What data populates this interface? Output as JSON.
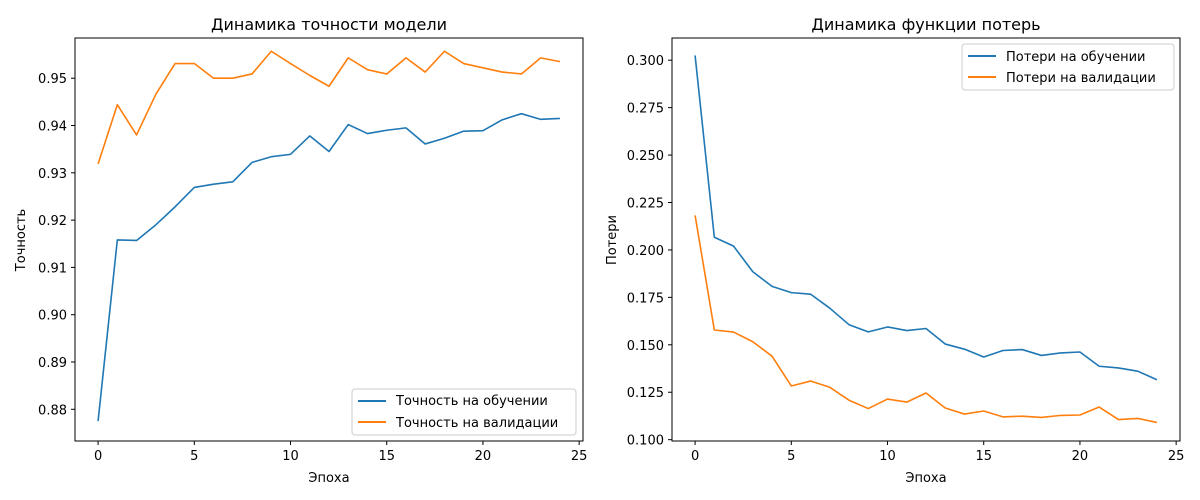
{
  "chart_data": [
    {
      "type": "line",
      "title": "Динамика точности модели",
      "xlabel": "Эпоха",
      "ylabel": "Точность",
      "xlim": [
        -1.2,
        25.2
      ],
      "ylim": [
        0.8733,
        0.9585
      ],
      "xticks": [
        0,
        5,
        10,
        15,
        20,
        25
      ],
      "yticks": [
        0.88,
        0.89,
        0.9,
        0.91,
        0.92,
        0.93,
        0.94,
        0.95
      ],
      "ytick_labels": [
        "0.88",
        "0.89",
        "0.90",
        "0.91",
        "0.92",
        "0.93",
        "0.94",
        "0.95"
      ],
      "grid": false,
      "legend_position": "lower-right",
      "x": [
        0,
        1,
        2,
        3,
        4,
        5,
        6,
        7,
        8,
        9,
        10,
        11,
        12,
        13,
        14,
        15,
        16,
        17,
        18,
        19,
        20,
        21,
        22,
        23,
        24
      ],
      "series": [
        {
          "name": "Точность на обучении",
          "color": "#1f77b4",
          "values": [
            0.8775,
            0.9158,
            0.9157,
            0.919,
            0.9228,
            0.9269,
            0.9276,
            0.9281,
            0.9322,
            0.9334,
            0.9339,
            0.9378,
            0.9345,
            0.9402,
            0.9383,
            0.939,
            0.9395,
            0.9361,
            0.9373,
            0.9388,
            0.9389,
            0.9412,
            0.9425,
            0.9413,
            0.9415
          ]
        },
        {
          "name": "Точность на валидации",
          "color": "#ff7f0e",
          "values": [
            0.9319,
            0.9444,
            0.938,
            0.9466,
            0.9531,
            0.9531,
            0.95,
            0.95,
            0.9509,
            0.9557,
            0.9531,
            0.9506,
            0.9483,
            0.9543,
            0.9518,
            0.9509,
            0.9543,
            0.9513,
            0.9557,
            0.9531,
            0.9522,
            0.9513,
            0.9509,
            0.9543,
            0.9535
          ]
        }
      ]
    },
    {
      "type": "line",
      "title": "Динамика функции потерь",
      "xlabel": "Эпоха",
      "ylabel": "Потери",
      "xlim": [
        -1.2,
        25.2
      ],
      "ylim": [
        0.0993,
        0.3117
      ],
      "xticks": [
        0,
        5,
        10,
        15,
        20,
        25
      ],
      "yticks": [
        0.1,
        0.125,
        0.15,
        0.175,
        0.2,
        0.225,
        0.25,
        0.275,
        0.3
      ],
      "ytick_labels": [
        "0.100",
        "0.125",
        "0.150",
        "0.175",
        "0.200",
        "0.225",
        "0.250",
        "0.275",
        "0.300"
      ],
      "grid": false,
      "legend_position": "top-right",
      "x": [
        0,
        1,
        2,
        3,
        4,
        5,
        6,
        7,
        8,
        9,
        10,
        11,
        12,
        13,
        14,
        15,
        16,
        17,
        18,
        19,
        20,
        21,
        22,
        23,
        24
      ],
      "series": [
        {
          "name": "Потери на обучении",
          "color": "#1f77b4",
          "values": [
            0.3025,
            0.2067,
            0.202,
            0.1885,
            0.1808,
            0.1775,
            0.1767,
            0.1693,
            0.1606,
            0.1568,
            0.1594,
            0.1575,
            0.1586,
            0.1504,
            0.1477,
            0.1436,
            0.147,
            0.1475,
            0.1444,
            0.1457,
            0.1462,
            0.1387,
            0.1378,
            0.1361,
            0.1316
          ]
        },
        {
          "name": "Потери на валидации",
          "color": "#ff7f0e",
          "values": [
            0.2182,
            0.1578,
            0.1567,
            0.1516,
            0.144,
            0.1283,
            0.1309,
            0.1276,
            0.1208,
            0.1164,
            0.1214,
            0.1198,
            0.1246,
            0.1167,
            0.1135,
            0.1151,
            0.112,
            0.1124,
            0.1117,
            0.1128,
            0.113,
            0.1172,
            0.1106,
            0.1112,
            0.1091
          ]
        }
      ]
    }
  ]
}
